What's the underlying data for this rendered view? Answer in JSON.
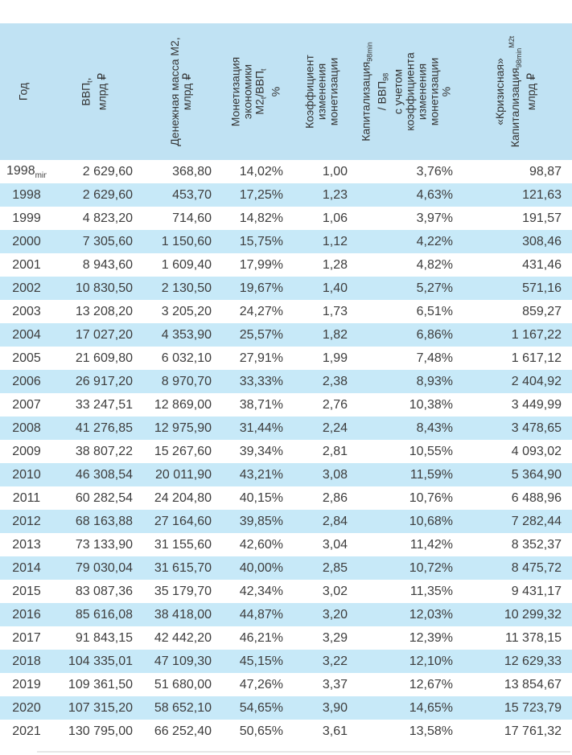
{
  "colors": {
    "header_bg": "#c0e2f3",
    "stripe_bg": "#c7e9f8",
    "text": "#3d3d3d"
  },
  "header": {
    "year": "Год",
    "gdp": {
      "text": "ВВП",
      "sub": "t",
      "comma": ",",
      "unit": "млрд ₽"
    },
    "m2": {
      "line1": "Денежная масса М2,",
      "line2": "млрд ₽"
    },
    "monetization": {
      "line1": "Монетизация",
      "line2": "экономики",
      "m2": "М2",
      "m2_sub": "t",
      "slash_gdp": "/ВВП",
      "gdp_sub": "t",
      "percent": "%"
    },
    "coef": {
      "line1": "Коэффициент",
      "line2": "изменения",
      "line3": "монетизации"
    },
    "cap_ratio": {
      "cap": "Капитализация",
      "cap_sub": "98min",
      "gdp": "/ ВВП",
      "gdp_sub": "98",
      "line3": "с учетом",
      "line4": "коэффициента",
      "line5": "изменения",
      "line6": "монетизации",
      "percent": "%"
    },
    "crisis_cap": {
      "line1": "«Кризисная»",
      "cap": "Капитализация",
      "cap_sub": "98min",
      "cap_sup": "М2t",
      "unit": "млрд ₽"
    }
  },
  "chart_data": {
    "type": "table",
    "title": "",
    "columns": [
      "Год",
      "ВВПt, млрд ₽",
      "Денежная масса М2, млрд ₽",
      "Монетизация экономики М2t/ВВПt, %",
      "Коэффициент изменения монетизации",
      "Капитализация98min / ВВП98 с учетом коэффициента изменения монетизации, %",
      "«Кризисная» Капитализация98min М2t, млрд ₽"
    ],
    "rows": [
      [
        "1998min",
        "2 629,60",
        "368,80",
        "14,02%",
        "1,00",
        "3,76%",
        "98,87"
      ],
      [
        "1998",
        "2 629,60",
        "453,70",
        "17,25%",
        "1,23",
        "4,63%",
        "121,63"
      ],
      [
        "1999",
        "4 823,20",
        "714,60",
        "14,82%",
        "1,06",
        "3,97%",
        "191,57"
      ],
      [
        "2000",
        "7 305,60",
        "1 150,60",
        "15,75%",
        "1,12",
        "4,22%",
        "308,46"
      ],
      [
        "2001",
        "8 943,60",
        "1 609,40",
        "17,99%",
        "1,28",
        "4,82%",
        "431,46"
      ],
      [
        "2002",
        "10 830,50",
        "2 130,50",
        "19,67%",
        "1,40",
        "5,27%",
        "571,16"
      ],
      [
        "2003",
        "13 208,20",
        "3 205,20",
        "24,27%",
        "1,73",
        "6,51%",
        "859,27"
      ],
      [
        "2004",
        "17 027,20",
        "4 353,90",
        "25,57%",
        "1,82",
        "6,86%",
        "1 167,22"
      ],
      [
        "2005",
        "21 609,80",
        "6 032,10",
        "27,91%",
        "1,99",
        "7,48%",
        "1 617,12"
      ],
      [
        "2006",
        "26 917,20",
        "8 970,70",
        "33,33%",
        "2,38",
        "8,93%",
        "2 404,92"
      ],
      [
        "2007",
        "33 247,51",
        "12 869,00",
        "38,71%",
        "2,76",
        "10,38%",
        "3 449,99"
      ],
      [
        "2008",
        "41 276,85",
        "12 975,90",
        "31,44%",
        "2,24",
        "8,43%",
        "3 478,65"
      ],
      [
        "2009",
        "38 807,22",
        "15 267,60",
        "39,34%",
        "2,81",
        "10,55%",
        "4 093,02"
      ],
      [
        "2010",
        "46 308,54",
        "20 011,90",
        "43,21%",
        "3,08",
        "11,59%",
        "5 364,90"
      ],
      [
        "2011",
        "60 282,54",
        "24 204,80",
        "40,15%",
        "2,86",
        "10,76%",
        "6 488,96"
      ],
      [
        "2012",
        "68 163,88",
        "27 164,60",
        "39,85%",
        "2,84",
        "10,68%",
        "7 282,44"
      ],
      [
        "2013",
        "73 133,90",
        "31 155,60",
        "42,60%",
        "3,04",
        "11,42%",
        "8 352,37"
      ],
      [
        "2014",
        "79 030,04",
        "31 615,70",
        "40,00%",
        "2,85",
        "10,72%",
        "8 475,72"
      ],
      [
        "2015",
        "83 087,36",
        "35 179,70",
        "42,34%",
        "3,02",
        "11,35%",
        "9 431,17"
      ],
      [
        "2016",
        "85 616,08",
        "38 418,00",
        "44,87%",
        "3,20",
        "12,03%",
        "10 299,32"
      ],
      [
        "2017",
        "91 843,15",
        "42 442,20",
        "46,21%",
        "3,29",
        "12,39%",
        "11 378,15"
      ],
      [
        "2018",
        "104 335,01",
        "47 109,30",
        "45,15%",
        "3,22",
        "12,10%",
        "12 629,33"
      ],
      [
        "2019",
        "109 361,50",
        "51 680,00",
        "47,26%",
        "3,37",
        "12,67%",
        "13 854,67"
      ],
      [
        "2020",
        "107 315,20",
        "58 652,10",
        "54,65%",
        "3,90",
        "14,65%",
        "15 723,79"
      ],
      [
        "2021",
        "130 795,00",
        "66 252,40",
        "50,65%",
        "3,61",
        "13,58%",
        "17 761,32"
      ]
    ]
  }
}
